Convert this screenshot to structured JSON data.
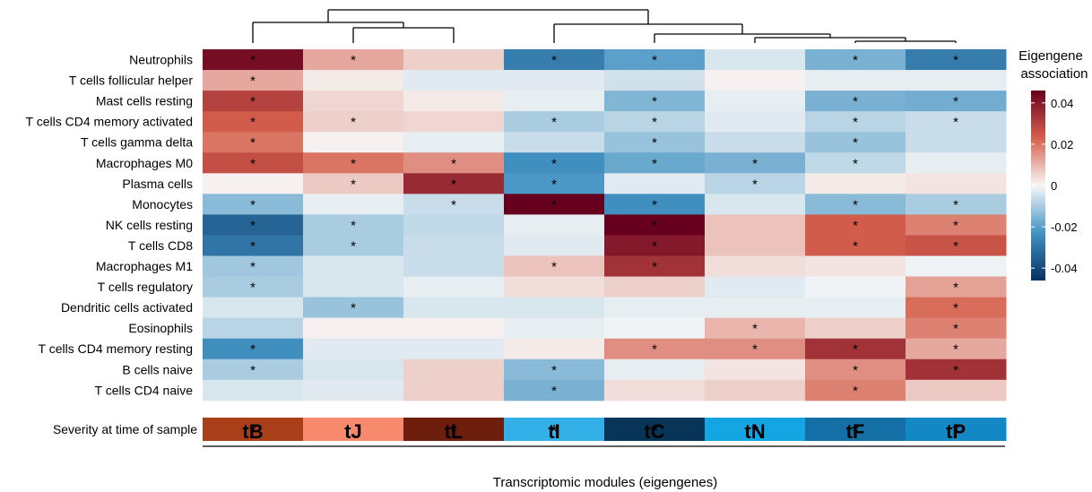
{
  "chart_data": {
    "type": "heatmap",
    "x_label": "Transcriptomic modules (eigengenes)",
    "columns": [
      "tB",
      "tJ",
      "tL",
      "tI",
      "tC",
      "tN",
      "tF",
      "tP"
    ],
    "rows": [
      "Neutrophils",
      "T cells follicular helper",
      "Mast cells resting",
      "T cells CD4 memory activated",
      "T cells gamma delta",
      "Macrophages M0",
      "Plasma cells",
      "Monocytes",
      "NK cells resting",
      "T cells CD8",
      "Macrophages M1",
      "T cells regulatory",
      "Dendritic cells activated",
      "Eosinophils",
      "T cells CD4 memory resting",
      "B cells naive",
      "T cells CD4 naive"
    ],
    "values": [
      [
        0.043,
        0.012,
        0.006,
        -0.028,
        -0.02,
        -0.004,
        -0.016,
        -0.028
      ],
      [
        0.012,
        0.002,
        -0.003,
        -0.003,
        -0.005,
        0.001,
        -0.002,
        -0.002
      ],
      [
        0.03,
        0.005,
        0.002,
        -0.002,
        -0.015,
        -0.002,
        -0.016,
        -0.017
      ],
      [
        0.024,
        0.006,
        0.005,
        -0.01,
        -0.008,
        -0.003,
        -0.008,
        -0.006
      ],
      [
        0.02,
        0.001,
        -0.002,
        -0.006,
        -0.012,
        -0.006,
        -0.012,
        -0.006
      ],
      [
        0.027,
        0.02,
        0.016,
        -0.024,
        -0.018,
        -0.016,
        -0.007,
        -0.002
      ],
      [
        0.001,
        0.007,
        0.036,
        -0.022,
        -0.003,
        -0.008,
        0.002,
        0.003
      ],
      [
        -0.014,
        -0.002,
        -0.006,
        0.046,
        -0.024,
        -0.004,
        -0.014,
        -0.01
      ],
      [
        -0.034,
        -0.01,
        -0.007,
        -0.002,
        0.046,
        0.008,
        0.024,
        0.018
      ],
      [
        -0.03,
        -0.01,
        -0.006,
        -0.003,
        0.04,
        0.008,
        0.024,
        0.026
      ],
      [
        -0.011,
        -0.004,
        -0.006,
        0.008,
        0.034,
        0.004,
        0.003,
        -0.001
      ],
      [
        -0.01,
        -0.004,
        -0.002,
        0.004,
        0.006,
        -0.003,
        -0.001,
        0.013
      ],
      [
        -0.004,
        -0.012,
        -0.004,
        -0.004,
        -0.002,
        -0.002,
        -0.002,
        0.021
      ],
      [
        -0.008,
        0.001,
        0.001,
        -0.002,
        -0.001,
        0.01,
        0.006,
        0.018
      ],
      [
        -0.024,
        -0.003,
        -0.003,
        0.002,
        0.016,
        0.016,
        0.034,
        0.012
      ],
      [
        -0.01,
        -0.004,
        0.006,
        -0.014,
        -0.002,
        0.003,
        0.016,
        0.034
      ],
      [
        -0.004,
        -0.003,
        0.006,
        -0.016,
        0.004,
        0.006,
        0.018,
        0.007
      ]
    ],
    "significant": [
      [
        1,
        1,
        0,
        1,
        1,
        0,
        1,
        1
      ],
      [
        1,
        0,
        0,
        0,
        0,
        0,
        0,
        0
      ],
      [
        1,
        0,
        0,
        0,
        1,
        0,
        1,
        1
      ],
      [
        1,
        1,
        0,
        1,
        1,
        0,
        1,
        1
      ],
      [
        1,
        0,
        0,
        0,
        1,
        0,
        1,
        0
      ],
      [
        1,
        1,
        1,
        1,
        1,
        1,
        1,
        0
      ],
      [
        0,
        1,
        1,
        1,
        0,
        1,
        0,
        0
      ],
      [
        1,
        0,
        1,
        1,
        1,
        0,
        1,
        1
      ],
      [
        1,
        1,
        0,
        0,
        1,
        0,
        1,
        1
      ],
      [
        1,
        1,
        0,
        0,
        1,
        0,
        1,
        1
      ],
      [
        1,
        0,
        0,
        1,
        1,
        0,
        0,
        0
      ],
      [
        1,
        0,
        0,
        0,
        0,
        0,
        0,
        1
      ],
      [
        0,
        1,
        0,
        0,
        0,
        0,
        0,
        1
      ],
      [
        0,
        0,
        0,
        0,
        0,
        1,
        0,
        1
      ],
      [
        1,
        0,
        0,
        0,
        1,
        1,
        1,
        1
      ],
      [
        1,
        0,
        0,
        1,
        0,
        0,
        1,
        1
      ],
      [
        0,
        0,
        0,
        1,
        0,
        0,
        1,
        0
      ]
    ],
    "severity": {
      "label": "Severity at time of sample",
      "colors": [
        "#a83f19",
        "#f78a6d",
        "#6e1e0c",
        "#34b0e8",
        "#073457",
        "#14a6e3",
        "#136fa5",
        "#1388c5"
      ],
      "significant": [
        1,
        0,
        1,
        1,
        1,
        1,
        1,
        1
      ]
    },
    "legend": {
      "title_line1": "Eigengene",
      "title_line2": "association",
      "ticks": [
        "0.04",
        "0.02",
        "0",
        "-0.02",
        "-0.04"
      ],
      "tick_values": [
        0.04,
        0.02,
        0,
        -0.02,
        -0.04
      ],
      "range": [
        -0.046,
        0.046
      ]
    },
    "colorscale": {
      "low": "#053061",
      "mid_low": "#4393c3",
      "mid": "#f7f7f7",
      "mid_high": "#d6604d",
      "high": "#67001f"
    },
    "star_symbol": "*"
  }
}
